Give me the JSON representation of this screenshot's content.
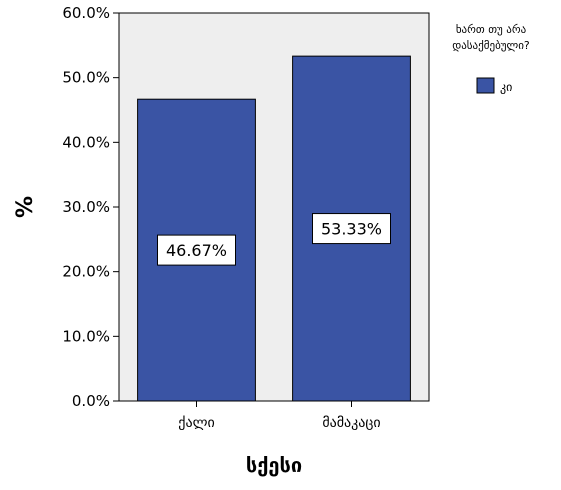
{
  "chart_data": {
    "type": "bar",
    "categories": [
      "ქალი",
      "მამაკაცი"
    ],
    "series": [
      {
        "name": "კი",
        "values": [
          46.67,
          53.33
        ],
        "color": "#3a54a4"
      }
    ],
    "data_labels": [
      "46.67%",
      "53.33%"
    ],
    "xlabel": "სქესი",
    "ylabel": "%",
    "ylim": [
      0,
      60
    ],
    "yticks": [
      "0.0%",
      "10.0%",
      "20.0%",
      "30.0%",
      "40.0%",
      "50.0%",
      "60.0%"
    ],
    "ytick_values": [
      0,
      10,
      20,
      30,
      40,
      50,
      60
    ],
    "legend": {
      "title_line1": "ხართ თუ არა",
      "title_line2": "დასაქმებული?",
      "placement": "right"
    },
    "plot_background": "#eeeeee",
    "grid": false
  }
}
